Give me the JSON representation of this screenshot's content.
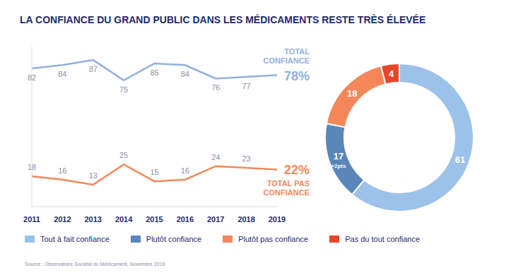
{
  "chart_data": [
    {
      "type": "line",
      "title": "LA CONFIANCE DU GRAND PUBLIC DANS LES MÉDICAMENTS RESTE TRÈS ÉLEVÉE",
      "source": "Source : Observatoire Sociétal du Médicament, Novembre 2019",
      "categories": [
        "2011",
        "2012",
        "2013",
        "2014",
        "2015",
        "2016",
        "2017",
        "2018",
        "2019"
      ],
      "series": [
        {
          "name": "TOTAL CONFIANCE",
          "color": "#8fb0df",
          "values": [
            82,
            84,
            87,
            75,
            85,
            84,
            76,
            77,
            78
          ],
          "value_labels": [
            "82",
            "84",
            "87",
            "75",
            "85",
            "84",
            "76",
            "77",
            "78%"
          ]
        },
        {
          "name": "TOTAL PAS CONFIANCE",
          "color": "#f4875a",
          "values": [
            18,
            16,
            13,
            25,
            15,
            16,
            24,
            23,
            22
          ],
          "value_labels": [
            "18",
            "16",
            "13",
            "25",
            "15",
            "16",
            "24",
            "23",
            "22%"
          ]
        }
      ],
      "ylim": [
        0,
        95
      ],
      "yticks": [],
      "tick_labels": "x",
      "grid": false,
      "data_labels": true
    },
    {
      "type": "pie",
      "categories": [
        "Tout à fait confiance",
        "Plutôt confiance",
        "Plutôt pas confiance",
        "Pas du tout confiance"
      ],
      "values": [
        61,
        17,
        18,
        4
      ],
      "colors": [
        "#9dc2ea",
        "#5a86ba",
        "#f4875a",
        "#e8452b"
      ],
      "data_labels": true,
      "legend": "bottom",
      "annotations": [
        {
          "category": "Plutôt confiance",
          "text": "+2pts"
        }
      ]
    }
  ]
}
